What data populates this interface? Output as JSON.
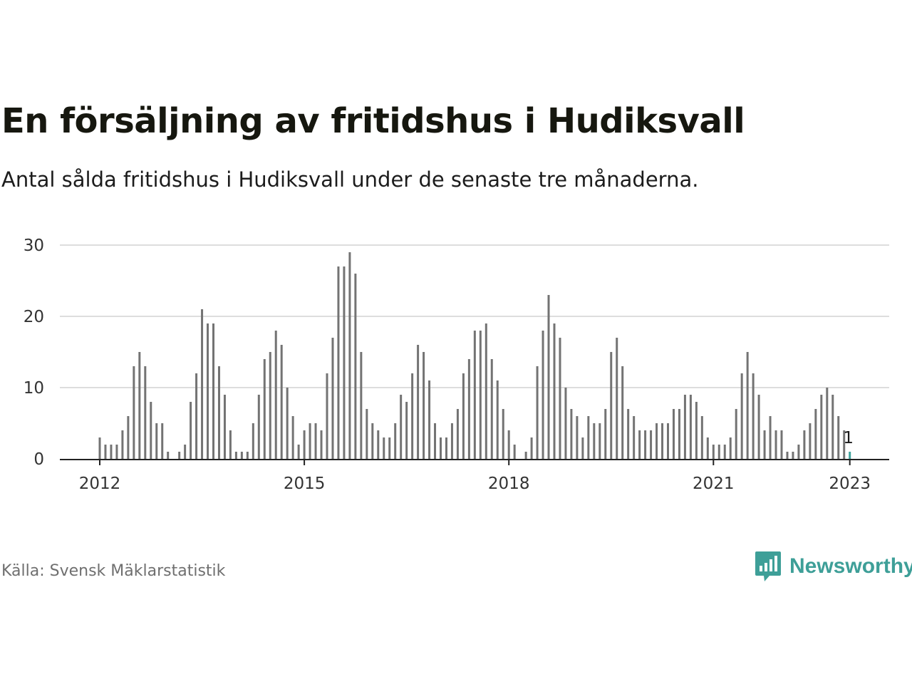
{
  "title": "En försäljning av fritidshus i Hudiksvall",
  "subtitle": "Antal sålda fritidshus i Hudiksvall under de senaste tre månaderna.",
  "source": "Källa: Svensk Mäklarstatistik",
  "brand": {
    "name": "Newsworthy",
    "icon": "newsworthy-logo-icon",
    "color": "#3e9f98"
  },
  "colors": {
    "bar": "#737373",
    "highlight": "#3ea39c",
    "grid": "#dddddd",
    "axis": "#222222"
  },
  "chart_data": {
    "type": "bar",
    "title": "En försäljning av fritidshus i Hudiksvall",
    "subtitle": "Antal sålda fritidshus i Hudiksvall under de senaste tre månaderna.",
    "xlabel": "",
    "ylabel": "",
    "ylim": [
      0,
      30
    ],
    "yticks": [
      0,
      10,
      20,
      30
    ],
    "grid": true,
    "x_start": "2012-01",
    "frequency": "monthly",
    "xtick_labels": [
      {
        "label": "2012",
        "index": 0
      },
      {
        "label": "2015",
        "index": 36
      },
      {
        "label": "2018",
        "index": 72
      },
      {
        "label": "2021",
        "index": 108
      },
      {
        "label": "2023",
        "index": 132
      }
    ],
    "values": [
      3,
      2,
      2,
      2,
      4,
      6,
      13,
      15,
      13,
      8,
      5,
      5,
      1,
      0,
      1,
      2,
      8,
      12,
      21,
      19,
      19,
      13,
      9,
      4,
      1,
      1,
      1,
      5,
      9,
      14,
      15,
      18,
      16,
      10,
      6,
      2,
      4,
      5,
      5,
      4,
      12,
      17,
      27,
      27,
      29,
      26,
      15,
      7,
      5,
      4,
      3,
      3,
      5,
      9,
      8,
      12,
      16,
      15,
      11,
      5,
      3,
      3,
      5,
      7,
      12,
      14,
      18,
      18,
      19,
      14,
      11,
      7,
      4,
      2,
      0,
      1,
      3,
      13,
      18,
      23,
      19,
      17,
      10,
      7,
      6,
      3,
      6,
      5,
      5,
      7,
      15,
      17,
      13,
      7,
      6,
      4,
      4,
      4,
      5,
      5,
      5,
      7,
      7,
      9,
      9,
      8,
      6,
      3,
      2,
      2,
      2,
      3,
      7,
      12,
      15,
      12,
      9,
      4,
      6,
      4,
      4,
      1,
      1,
      2,
      4,
      5,
      7,
      9,
      10,
      9,
      6,
      4,
      1
    ],
    "highlight_index": 132,
    "annotations": [
      {
        "index": 132,
        "text": "1"
      }
    ]
  }
}
